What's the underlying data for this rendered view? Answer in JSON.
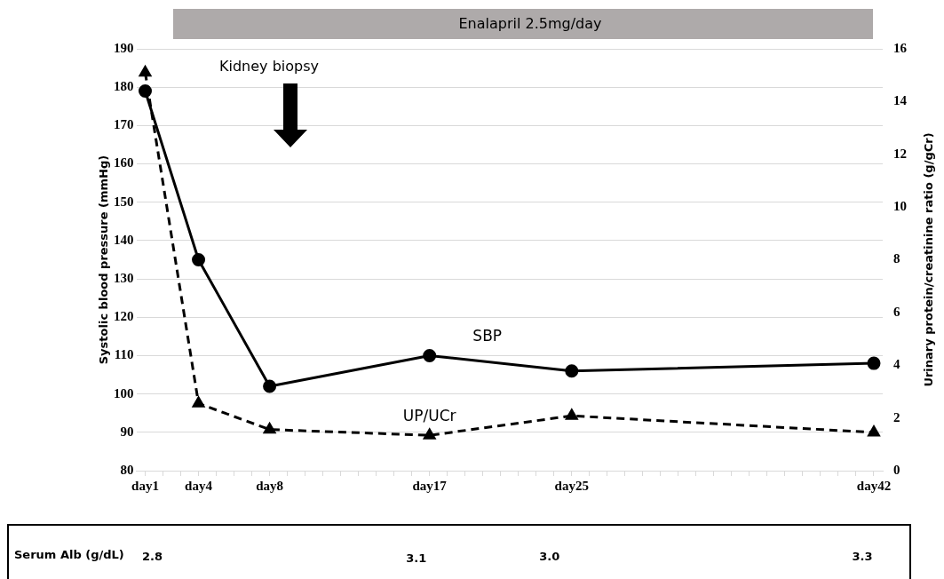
{
  "chart_data": {
    "type": "line",
    "ylabel": "Systolic blood pressure (mmHg)",
    "y2label": "Urinary protein/creatinine ratio (g/gCr)",
    "categories": [
      "day1",
      null,
      null,
      "day4",
      null,
      null,
      null,
      "day8",
      null,
      null,
      null,
      null,
      null,
      null,
      null,
      null,
      "day17",
      null,
      null,
      null,
      null,
      null,
      null,
      null,
      "day25",
      null,
      null,
      null,
      null,
      null,
      null,
      null,
      null,
      null,
      null,
      null,
      null,
      null,
      null,
      null,
      null,
      "day42"
    ],
    "ylim": [
      80,
      190
    ],
    "yticks": [
      80,
      90,
      100,
      110,
      120,
      130,
      140,
      150,
      160,
      170,
      180,
      190
    ],
    "y2lim": [
      0,
      16
    ],
    "y2ticks": [
      0,
      2,
      4,
      6,
      8,
      10,
      12,
      14,
      16
    ],
    "series": [
      {
        "name": "SBP",
        "color": "#000000",
        "marker": "circle",
        "line_style": "solid",
        "values": [
          179,
          null,
          null,
          135,
          null,
          null,
          null,
          102,
          null,
          null,
          null,
          null,
          null,
          null,
          null,
          null,
          110,
          null,
          null,
          null,
          null,
          null,
          null,
          null,
          106,
          null,
          null,
          null,
          null,
          null,
          null,
          null,
          null,
          null,
          null,
          null,
          null,
          null,
          null,
          null,
          null,
          108
        ]
      },
      {
        "name": "UP/UCr",
        "color": "#000000",
        "marker": "triangle",
        "line_style": "dashed",
        "axis": "y2",
        "values": [
          15.1,
          null,
          null,
          2.55,
          null,
          null,
          null,
          1.56,
          null,
          null,
          null,
          null,
          null,
          null,
          null,
          null,
          1.34,
          null,
          null,
          null,
          null,
          null,
          null,
          null,
          2.08,
          null,
          null,
          null,
          null,
          null,
          null,
          null,
          null,
          null,
          null,
          null,
          null,
          null,
          null,
          null,
          null,
          1.45
        ]
      }
    ],
    "annotations": [
      "Enalapril 2.5mg/day",
      "Kidney biopsy",
      "Serum Alb (g/dL)",
      "2.8",
      "3.1",
      "3.0",
      "3.3"
    ],
    "grid": "y",
    "legend": false
  }
}
